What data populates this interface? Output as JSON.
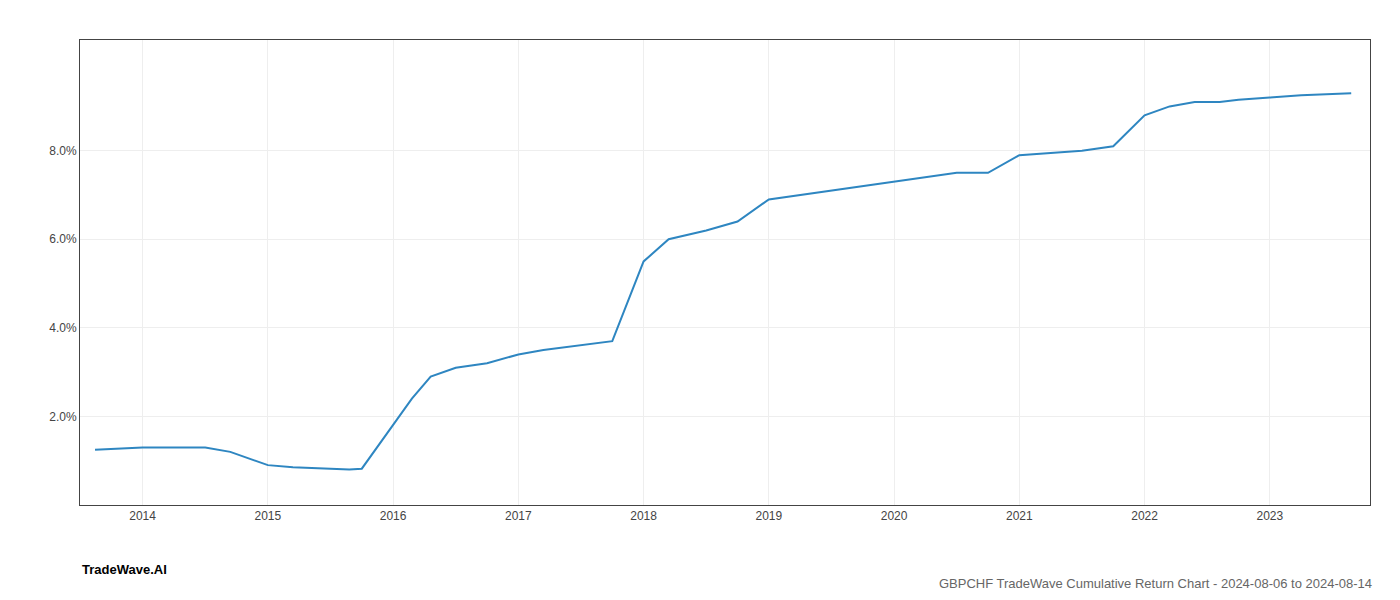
{
  "chart_data": {
    "type": "line",
    "title": "GBPCHF TradeWave Cumulative Return Chart - 2024-08-06 to 2024-08-14",
    "annotations": [
      "TradeWave.AI"
    ],
    "x": [
      2013.62,
      2014.0,
      2014.5,
      2014.7,
      2015.0,
      2015.2,
      2015.5,
      2015.65,
      2015.75,
      2016.0,
      2016.15,
      2016.3,
      2016.5,
      2016.75,
      2017.0,
      2017.2,
      2017.5,
      2017.75,
      2018.0,
      2018.2,
      2018.5,
      2018.75,
      2019.0,
      2019.25,
      2019.5,
      2019.75,
      2020.0,
      2020.25,
      2020.5,
      2020.75,
      2021.0,
      2021.25,
      2021.5,
      2021.75,
      2022.0,
      2022.2,
      2022.4,
      2022.6,
      2022.75,
      2023.0,
      2023.25,
      2023.5,
      2023.65
    ],
    "values": [
      0.0125,
      0.013,
      0.013,
      0.012,
      0.009,
      0.0085,
      0.0082,
      0.008,
      0.0082,
      0.018,
      0.024,
      0.029,
      0.031,
      0.032,
      0.034,
      0.035,
      0.036,
      0.037,
      0.055,
      0.06,
      0.062,
      0.064,
      0.069,
      0.07,
      0.071,
      0.072,
      0.073,
      0.074,
      0.075,
      0.075,
      0.079,
      0.0795,
      0.08,
      0.081,
      0.088,
      0.09,
      0.091,
      0.091,
      0.0915,
      0.092,
      0.0925,
      0.0928,
      0.093
    ],
    "color": "#2e86c1",
    "xlim": [
      2013.5,
      2023.8
    ],
    "xticks": [
      2014,
      2015,
      2016,
      2017,
      2018,
      2019,
      2020,
      2021,
      2022,
      2023
    ],
    "ylim": [
      0.0,
      0.105
    ],
    "yticks": [
      {
        "value": 0.02,
        "label": "2.0%"
      },
      {
        "value": 0.04,
        "label": "4.0%"
      },
      {
        "value": 0.06,
        "label": "6.0%"
      },
      {
        "value": 0.08,
        "label": "8.0%"
      }
    ],
    "grid": true
  }
}
